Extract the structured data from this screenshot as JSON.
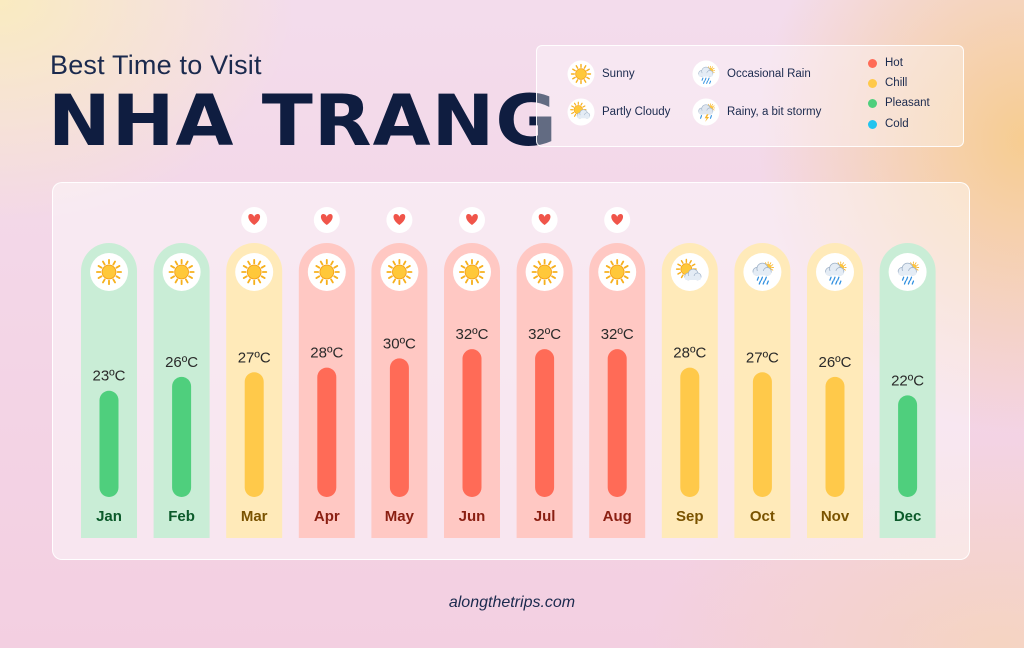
{
  "header": {
    "subtitle": "Best Time to Visit",
    "title": "NHA TRANG"
  },
  "legend": {
    "weather": [
      {
        "label": "Sunny",
        "icon": "sunny-icon"
      },
      {
        "label": "Partly Cloudy",
        "icon": "partly-cloudy-icon"
      },
      {
        "label": "Occasional Rain",
        "icon": "occasional-rain-icon"
      },
      {
        "label": "Rainy, a bit stormy",
        "icon": "stormy-icon"
      }
    ],
    "categories": [
      {
        "label": "Hot",
        "color": "#ff6b57"
      },
      {
        "label": "Chill",
        "color": "#ffc94a"
      },
      {
        "label": "Pleasant",
        "color": "#4fcf7d"
      },
      {
        "label": "Cold",
        "color": "#22c4ef"
      }
    ]
  },
  "chart_data": {
    "type": "bar",
    "title": "",
    "xlabel": "",
    "ylabel": "",
    "unit": "ºC",
    "categories": [
      "Jan",
      "Feb",
      "Mar",
      "Apr",
      "May",
      "Jun",
      "Jul",
      "Aug",
      "Sep",
      "Oct",
      "Nov",
      "Dec"
    ],
    "values": [
      23,
      26,
      27,
      28,
      30,
      32,
      32,
      32,
      28,
      27,
      26,
      22
    ],
    "value_labels": [
      "23ºC",
      "26ºC",
      "27ºC",
      "28ºC",
      "30ºC",
      "32ºC",
      "32ºC",
      "32ºC",
      "28ºC",
      "27ºC",
      "26ºC",
      "22ºC"
    ],
    "weather": [
      "sunny",
      "sunny",
      "sunny",
      "sunny",
      "sunny",
      "sunny",
      "sunny",
      "sunny",
      "partly-cloudy",
      "occasional-rain",
      "occasional-rain",
      "occasional-rain"
    ],
    "category": [
      "Pleasant",
      "Pleasant",
      "Chill",
      "Hot",
      "Hot",
      "Hot",
      "Hot",
      "Hot",
      "Chill",
      "Chill",
      "Chill",
      "Pleasant"
    ],
    "best_time": [
      false,
      false,
      true,
      true,
      true,
      true,
      true,
      true,
      false,
      false,
      false,
      false
    ],
    "best_time_icon": "heart-icon",
    "column_bg_colors": {
      "Hot": "#ffc8c3",
      "Chill": "#ffeab9",
      "Pleasant": "#c9edd6",
      "Cold": "#c6eefb"
    },
    "ylim": [
      0,
      40
    ],
    "grid": false,
    "legend": "top-right"
  },
  "footer": {
    "text": "alongthetrips.com"
  }
}
